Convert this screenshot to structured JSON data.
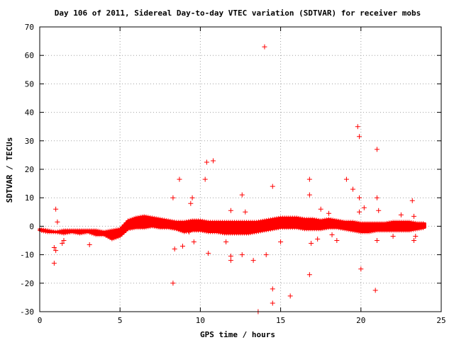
{
  "chart_data": {
    "type": "scatter",
    "title": "Day 106 of 2011, Sidereal Day-to-day VTEC variation (SDTVAR) for receiver mobs",
    "xlabel": "GPS time / hours",
    "ylabel": "SDTVAR / TECUs",
    "xlim": [
      0,
      25
    ],
    "ylim": [
      -30,
      70
    ],
    "xticks": [
      "0",
      "5",
      "10",
      "15",
      "20",
      "25"
    ],
    "yticks": [
      "-30",
      "-20",
      "-10",
      "0",
      "10",
      "20",
      "30",
      "40",
      "50",
      "60",
      "70"
    ],
    "grid": true,
    "marker": "+",
    "color": "#ff0000",
    "series": [
      {
        "dense_band": [
          [
            0.0,
            -1.0,
            -1.5
          ],
          [
            0.5,
            -1.5,
            -2.0
          ],
          [
            1.0,
            -2.0,
            -2.0
          ],
          [
            1.5,
            -1.5,
            -2.5
          ],
          [
            2.0,
            -1.5,
            -2.0
          ],
          [
            2.5,
            -1.5,
            -2.5
          ],
          [
            3.0,
            -1.5,
            -2.0
          ],
          [
            3.5,
            -1.5,
            -3.0
          ],
          [
            4.0,
            -2.0,
            -3.0
          ],
          [
            4.5,
            -1.5,
            -4.5
          ],
          [
            5.0,
            -1.0,
            -3.5
          ],
          [
            5.5,
            2.0,
            -1.0
          ],
          [
            6.0,
            3.0,
            -0.5
          ],
          [
            6.5,
            3.5,
            -0.5
          ],
          [
            7.0,
            3.0,
            0.0
          ],
          [
            7.5,
            2.5,
            -0.5
          ],
          [
            8.0,
            2.0,
            -0.5
          ],
          [
            8.5,
            1.5,
            -1.0
          ],
          [
            9.0,
            1.5,
            -2.0
          ],
          [
            9.5,
            2.0,
            -1.5
          ],
          [
            10.0,
            2.0,
            -1.5
          ],
          [
            10.5,
            1.5,
            -2.0
          ],
          [
            11.0,
            1.5,
            -2.0
          ],
          [
            11.5,
            1.5,
            -2.5
          ],
          [
            12.0,
            1.5,
            -2.5
          ],
          [
            12.5,
            1.5,
            -2.5
          ],
          [
            13.0,
            1.5,
            -2.5
          ],
          [
            13.5,
            1.5,
            -2.0
          ],
          [
            14.0,
            2.0,
            -1.5
          ],
          [
            14.5,
            2.5,
            -1.0
          ],
          [
            15.0,
            3.0,
            -0.5
          ],
          [
            15.5,
            3.0,
            -0.5
          ],
          [
            16.0,
            3.0,
            -0.5
          ],
          [
            16.5,
            2.5,
            -1.0
          ],
          [
            17.0,
            2.5,
            -1.0
          ],
          [
            17.5,
            2.0,
            -1.0
          ],
          [
            18.0,
            2.5,
            -0.5
          ],
          [
            18.5,
            2.0,
            -0.5
          ],
          [
            19.0,
            1.5,
            -1.0
          ],
          [
            19.5,
            1.5,
            -1.5
          ],
          [
            20.0,
            1.0,
            -2.0
          ],
          [
            20.5,
            1.0,
            -2.0
          ],
          [
            21.0,
            1.0,
            -1.5
          ],
          [
            21.5,
            1.0,
            -1.5
          ],
          [
            22.0,
            1.5,
            -1.5
          ],
          [
            22.5,
            1.5,
            -1.5
          ],
          [
            23.0,
            1.5,
            -1.5
          ],
          [
            23.5,
            1.0,
            -1.0
          ],
          [
            24.0,
            1.0,
            -0.5
          ]
        ],
        "outliers": [
          [
            0.9,
            -13.0
          ],
          [
            0.9,
            -7.5
          ],
          [
            1.0,
            -8.5
          ],
          [
            1.0,
            6.0
          ],
          [
            1.1,
            1.5
          ],
          [
            1.4,
            -6.0
          ],
          [
            1.5,
            -5.0
          ],
          [
            3.1,
            -6.5
          ],
          [
            8.3,
            10.0
          ],
          [
            8.3,
            -20.0
          ],
          [
            8.4,
            -8.0
          ],
          [
            8.7,
            16.5
          ],
          [
            8.9,
            -7.0
          ],
          [
            9.3,
            -2.0
          ],
          [
            9.4,
            8.0
          ],
          [
            9.5,
            10.0
          ],
          [
            9.6,
            -5.5
          ],
          [
            10.3,
            16.5
          ],
          [
            10.4,
            22.5
          ],
          [
            10.5,
            -9.5
          ],
          [
            10.8,
            23.0
          ],
          [
            11.6,
            -5.5
          ],
          [
            11.9,
            5.5
          ],
          [
            11.9,
            -10.5
          ],
          [
            11.9,
            -12.0
          ],
          [
            12.6,
            11.0
          ],
          [
            12.6,
            -10.0
          ],
          [
            12.8,
            5.0
          ],
          [
            13.3,
            -12.0
          ],
          [
            13.6,
            -30.0
          ],
          [
            14.0,
            63.0
          ],
          [
            14.1,
            -10.0
          ],
          [
            14.5,
            14.0
          ],
          [
            14.5,
            -22.0
          ],
          [
            14.5,
            -27.0
          ],
          [
            15.0,
            -5.5
          ],
          [
            15.6,
            -24.5
          ],
          [
            16.8,
            -17.0
          ],
          [
            16.8,
            16.5
          ],
          [
            16.8,
            11.0
          ],
          [
            16.9,
            -6.0
          ],
          [
            17.3,
            -4.5
          ],
          [
            17.5,
            6.0
          ],
          [
            18.0,
            4.5
          ],
          [
            18.2,
            -3.0
          ],
          [
            18.5,
            -5.0
          ],
          [
            19.1,
            16.5
          ],
          [
            19.5,
            13.0
          ],
          [
            19.8,
            35.0
          ],
          [
            19.9,
            31.5
          ],
          [
            19.9,
            10.0
          ],
          [
            19.9,
            5.0
          ],
          [
            20.0,
            -15.0
          ],
          [
            20.2,
            6.5
          ],
          [
            20.9,
            -22.5
          ],
          [
            21.0,
            27.0
          ],
          [
            21.0,
            10.0
          ],
          [
            21.1,
            5.5
          ],
          [
            21.0,
            -5.0
          ],
          [
            22.0,
            -3.5
          ],
          [
            22.5,
            4.0
          ],
          [
            23.2,
            9.0
          ],
          [
            23.3,
            3.5
          ],
          [
            23.4,
            -3.5
          ],
          [
            23.3,
            -5.0
          ]
        ]
      }
    ]
  }
}
